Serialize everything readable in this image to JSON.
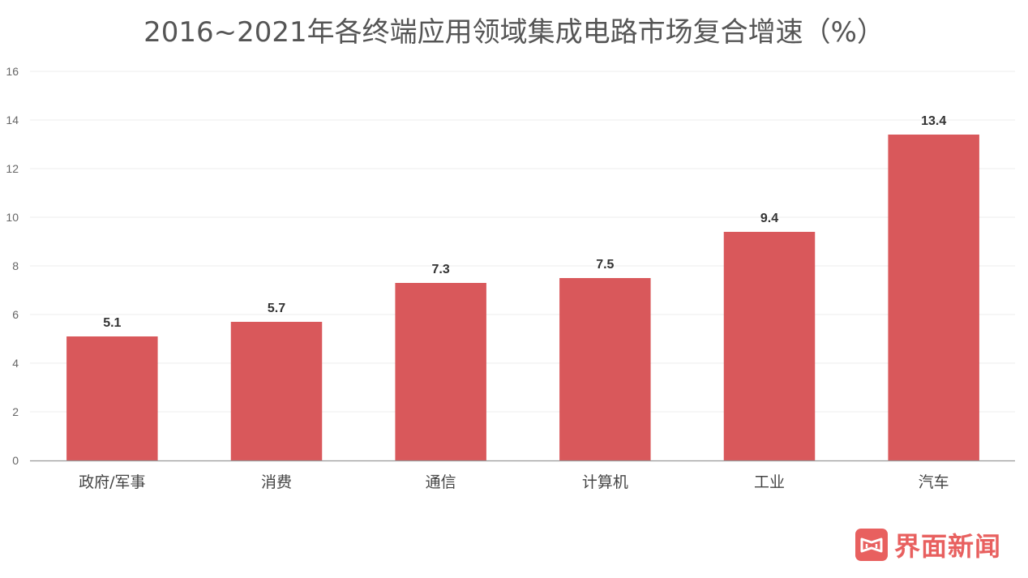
{
  "chart_data": {
    "type": "bar",
    "title": "2016~2021年各终端应用领域集成电路市场复合增速（%）",
    "categories": [
      "政府/军事",
      "消费",
      "通信",
      "计算机",
      "工业",
      "汽车"
    ],
    "values": [
      5.1,
      5.7,
      7.3,
      7.5,
      9.4,
      13.4
    ],
    "data_labels": [
      "5.1",
      "5.7",
      "7.3",
      "7.5",
      "9.4",
      "13.4"
    ],
    "y_ticks": [
      "0",
      "2",
      "4",
      "6",
      "8",
      "10",
      "12",
      "14",
      "16"
    ],
    "xlabel": "",
    "ylabel": "",
    "ylim": [
      0,
      16
    ],
    "grid": true,
    "legend": "none",
    "bar_color": "#d9585b"
  },
  "watermark": {
    "text": "界面新闻",
    "color": "#e8605f"
  }
}
